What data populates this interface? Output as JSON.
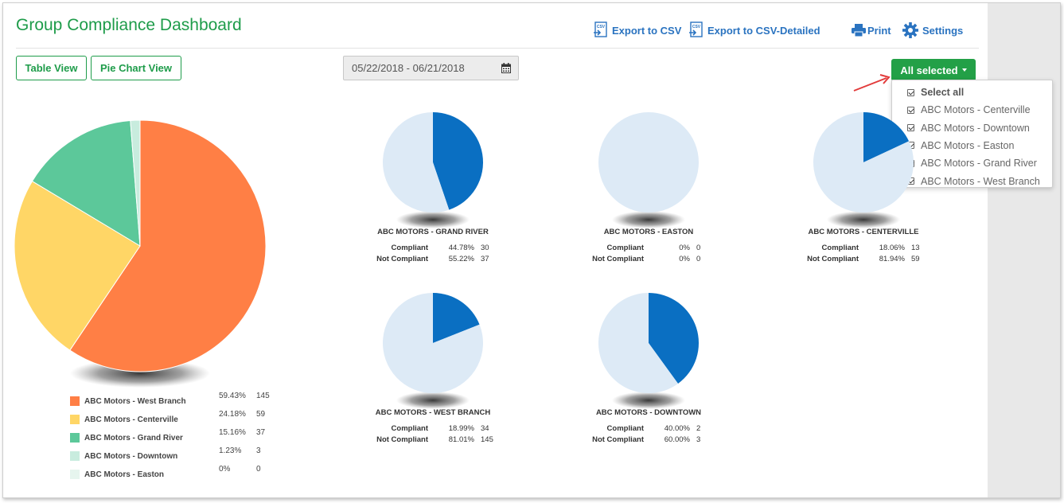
{
  "title": "Group Compliance Dashboard",
  "toolbar": {
    "export_csv": "Export to CSV",
    "export_csv_detailed": "Export to CSV-Detailed",
    "print": "Print",
    "settings": "Settings"
  },
  "views": {
    "table": "Table View",
    "pie": "Pie Chart View"
  },
  "date_range": "05/22/2018 - 06/21/2018",
  "filter": {
    "button_label": "All selected",
    "options": [
      {
        "label": "Select all",
        "checked": true
      },
      {
        "label": "ABC Motors - Centerville",
        "checked": true
      },
      {
        "label": "ABC Motors - Downtown",
        "checked": true
      },
      {
        "label": "ABC Motors - Easton",
        "checked": true
      },
      {
        "label": "ABC Motors - Grand River",
        "checked": true
      },
      {
        "label": "ABC Motors - West Branch",
        "checked": true
      }
    ]
  },
  "colors": {
    "brand_green": "#1e9c4a",
    "compliant": "#0a6fc2",
    "not_compliant": "#ddeaf6"
  },
  "chart_data": [
    {
      "type": "pie",
      "title": "",
      "categories": [
        "ABC Motors - West Branch",
        "ABC Motors - Centerville",
        "ABC Motors - Grand River",
        "ABC Motors - Downtown",
        "ABC Motors - Easton"
      ],
      "values": [
        145,
        59,
        37,
        3,
        0
      ],
      "percents": [
        "59.43%",
        "24.18%",
        "15.16%",
        "1.23%",
        "0%"
      ],
      "colors": [
        "#ff7f45",
        "#ffd666",
        "#5cc89a",
        "#c8ecde",
        "#e6f5ee"
      ],
      "legend": "bottom"
    },
    {
      "type": "pie",
      "title": "ABC MOTORS - GRAND RIVER",
      "categories": [
        "Compliant",
        "Not Compliant"
      ],
      "values": [
        30,
        37
      ],
      "percents": [
        "44.78%",
        "55.22%"
      ]
    },
    {
      "type": "pie",
      "title": "ABC MOTORS - EASTON",
      "categories": [
        "Compliant",
        "Not Compliant"
      ],
      "values": [
        0,
        0
      ],
      "percents": [
        "0%",
        "0%"
      ]
    },
    {
      "type": "pie",
      "title": "ABC MOTORS - CENTERVILLE",
      "categories": [
        "Compliant",
        "Not Compliant"
      ],
      "values": [
        13,
        59
      ],
      "percents": [
        "18.06%",
        "81.94%"
      ]
    },
    {
      "type": "pie",
      "title": "ABC MOTORS - WEST BRANCH",
      "categories": [
        "Compliant",
        "Not Compliant"
      ],
      "values": [
        34,
        145
      ],
      "percents": [
        "18.99%",
        "81.01%"
      ]
    },
    {
      "type": "pie",
      "title": "ABC MOTORS - DOWNTOWN",
      "categories": [
        "Compliant",
        "Not Compliant"
      ],
      "values": [
        2,
        3
      ],
      "percents": [
        "40.00%",
        "60.00%"
      ]
    }
  ]
}
